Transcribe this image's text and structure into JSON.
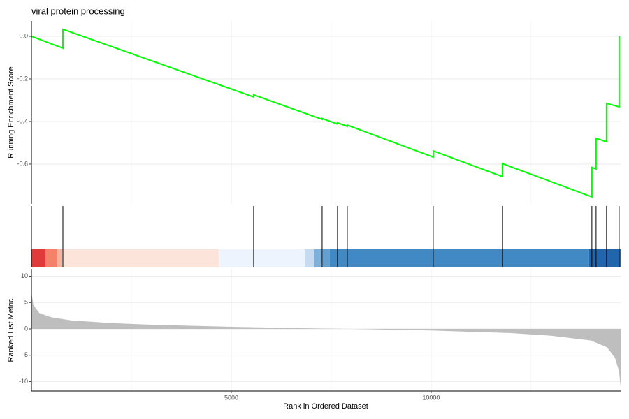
{
  "chart_data": [
    {
      "type": "line",
      "title": "viral protein processing",
      "ylabel": "Running Enrichment Score",
      "x": [
        0,
        787,
        787,
        5559,
        5559,
        7273,
        7273,
        7657,
        7657,
        7902,
        7902,
        10052,
        10052,
        11783,
        11783,
        14021,
        14021,
        14126,
        14126,
        14388,
        14388,
        14703,
        14703
      ],
      "values": [
        0,
        -0.056,
        0.033,
        -0.285,
        -0.275,
        -0.39,
        -0.386,
        -0.412,
        -0.406,
        -0.423,
        -0.417,
        -0.567,
        -0.538,
        -0.659,
        -0.598,
        -0.754,
        -0.616,
        -0.623,
        -0.479,
        -0.495,
        -0.315,
        -0.331,
        0
      ],
      "color": "#00ff00",
      "xlim": [
        0,
        14740
      ],
      "ylim": [
        -0.787,
        0.072
      ],
      "yticks": [
        {
          "value": 0,
          "label": "0.0"
        },
        -0.2,
        -0.4,
        -0.6
      ],
      "xticks": [
        5000,
        10000
      ],
      "xminor": [
        2500,
        7500,
        12500
      ],
      "grid": true
    },
    {
      "type": "rug",
      "hits": [
        787,
        5559,
        7273,
        7657,
        7902,
        10052,
        11783,
        14021,
        14126,
        14388,
        14703
      ],
      "color": "#000000",
      "xlim": [
        0,
        14740
      ],
      "band": [
        {
          "start": 0,
          "end": 350,
          "color": "#e03a3a"
        },
        {
          "start": 350,
          "end": 647,
          "color": "#f4826a"
        },
        {
          "start": 647,
          "end": 752,
          "color": "#f9b39c"
        },
        {
          "start": 752,
          "end": 4685,
          "color": "#fde4da"
        },
        {
          "start": 4685,
          "end": 6836,
          "color": "#eef4fd"
        },
        {
          "start": 6836,
          "end": 7080,
          "color": "#c6dbef"
        },
        {
          "start": 7080,
          "end": 7290,
          "color": "#7fb0d8"
        },
        {
          "start": 7290,
          "end": 7465,
          "color": "#63a0cf"
        },
        {
          "start": 7465,
          "end": 13951,
          "color": "#4189c4"
        },
        {
          "start": 13951,
          "end": 14740,
          "color": "#2166ac"
        }
      ]
    },
    {
      "type": "area",
      "ylabel": "Ranked List Metric",
      "xlabel": "Rank in Ordered Dataset",
      "x": [
        0,
        50,
        200,
        500,
        1000,
        2000,
        3000,
        5000,
        7000,
        8000,
        10000,
        12000,
        13000,
        14000,
        14400,
        14600,
        14700,
        14740
      ],
      "values": [
        7,
        4.5,
        3,
        2.2,
        1.6,
        1.1,
        0.8,
        0.4,
        0.1,
        0,
        -0.3,
        -0.8,
        -1.3,
        -2.2,
        -3.5,
        -5.5,
        -8,
        -11
      ],
      "color": "#bebebe",
      "xlim": [
        0,
        14740
      ],
      "ylim": [
        -11.8,
        11.4
      ],
      "yticks": [
        10,
        5,
        0,
        -5,
        -10
      ],
      "xticks": [
        5000,
        10000
      ],
      "xminor": [
        2500,
        7500,
        12500
      ],
      "grid": true
    }
  ]
}
